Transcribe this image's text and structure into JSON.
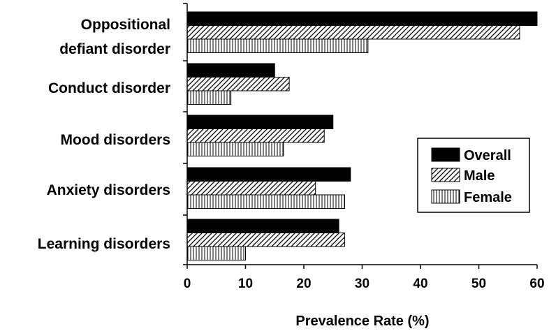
{
  "chart_data": {
    "type": "bar",
    "orientation": "horizontal",
    "categories": [
      "Oppositional defiant disorder",
      "Conduct disorder",
      "Mood disorders",
      "Anxiety disorders",
      "Learning disorders"
    ],
    "category_lines": [
      [
        "Oppositional",
        "defiant disorder"
      ],
      [
        "Conduct disorder"
      ],
      [
        "Mood disorders"
      ],
      [
        "Anxiety disorders"
      ],
      [
        "Learning disorders"
      ]
    ],
    "series": [
      {
        "name": "Overall",
        "values": [
          60,
          15,
          25,
          28,
          26
        ],
        "fill": "solid",
        "color": "#000000"
      },
      {
        "name": "Male",
        "values": [
          57,
          17.5,
          23.5,
          22,
          27
        ],
        "fill": "diagonal",
        "color": "#000000"
      },
      {
        "name": "Female",
        "values": [
          31,
          7.5,
          16.5,
          27,
          10
        ],
        "fill": "vertical",
        "color": "#000000"
      }
    ],
    "xlabel": "Prevalence Rate (%)",
    "ylabel": "",
    "xlim": [
      0,
      60
    ],
    "xticks": [
      0,
      10,
      20,
      30,
      40,
      50,
      60
    ],
    "grid": false,
    "legend_position": "right"
  }
}
